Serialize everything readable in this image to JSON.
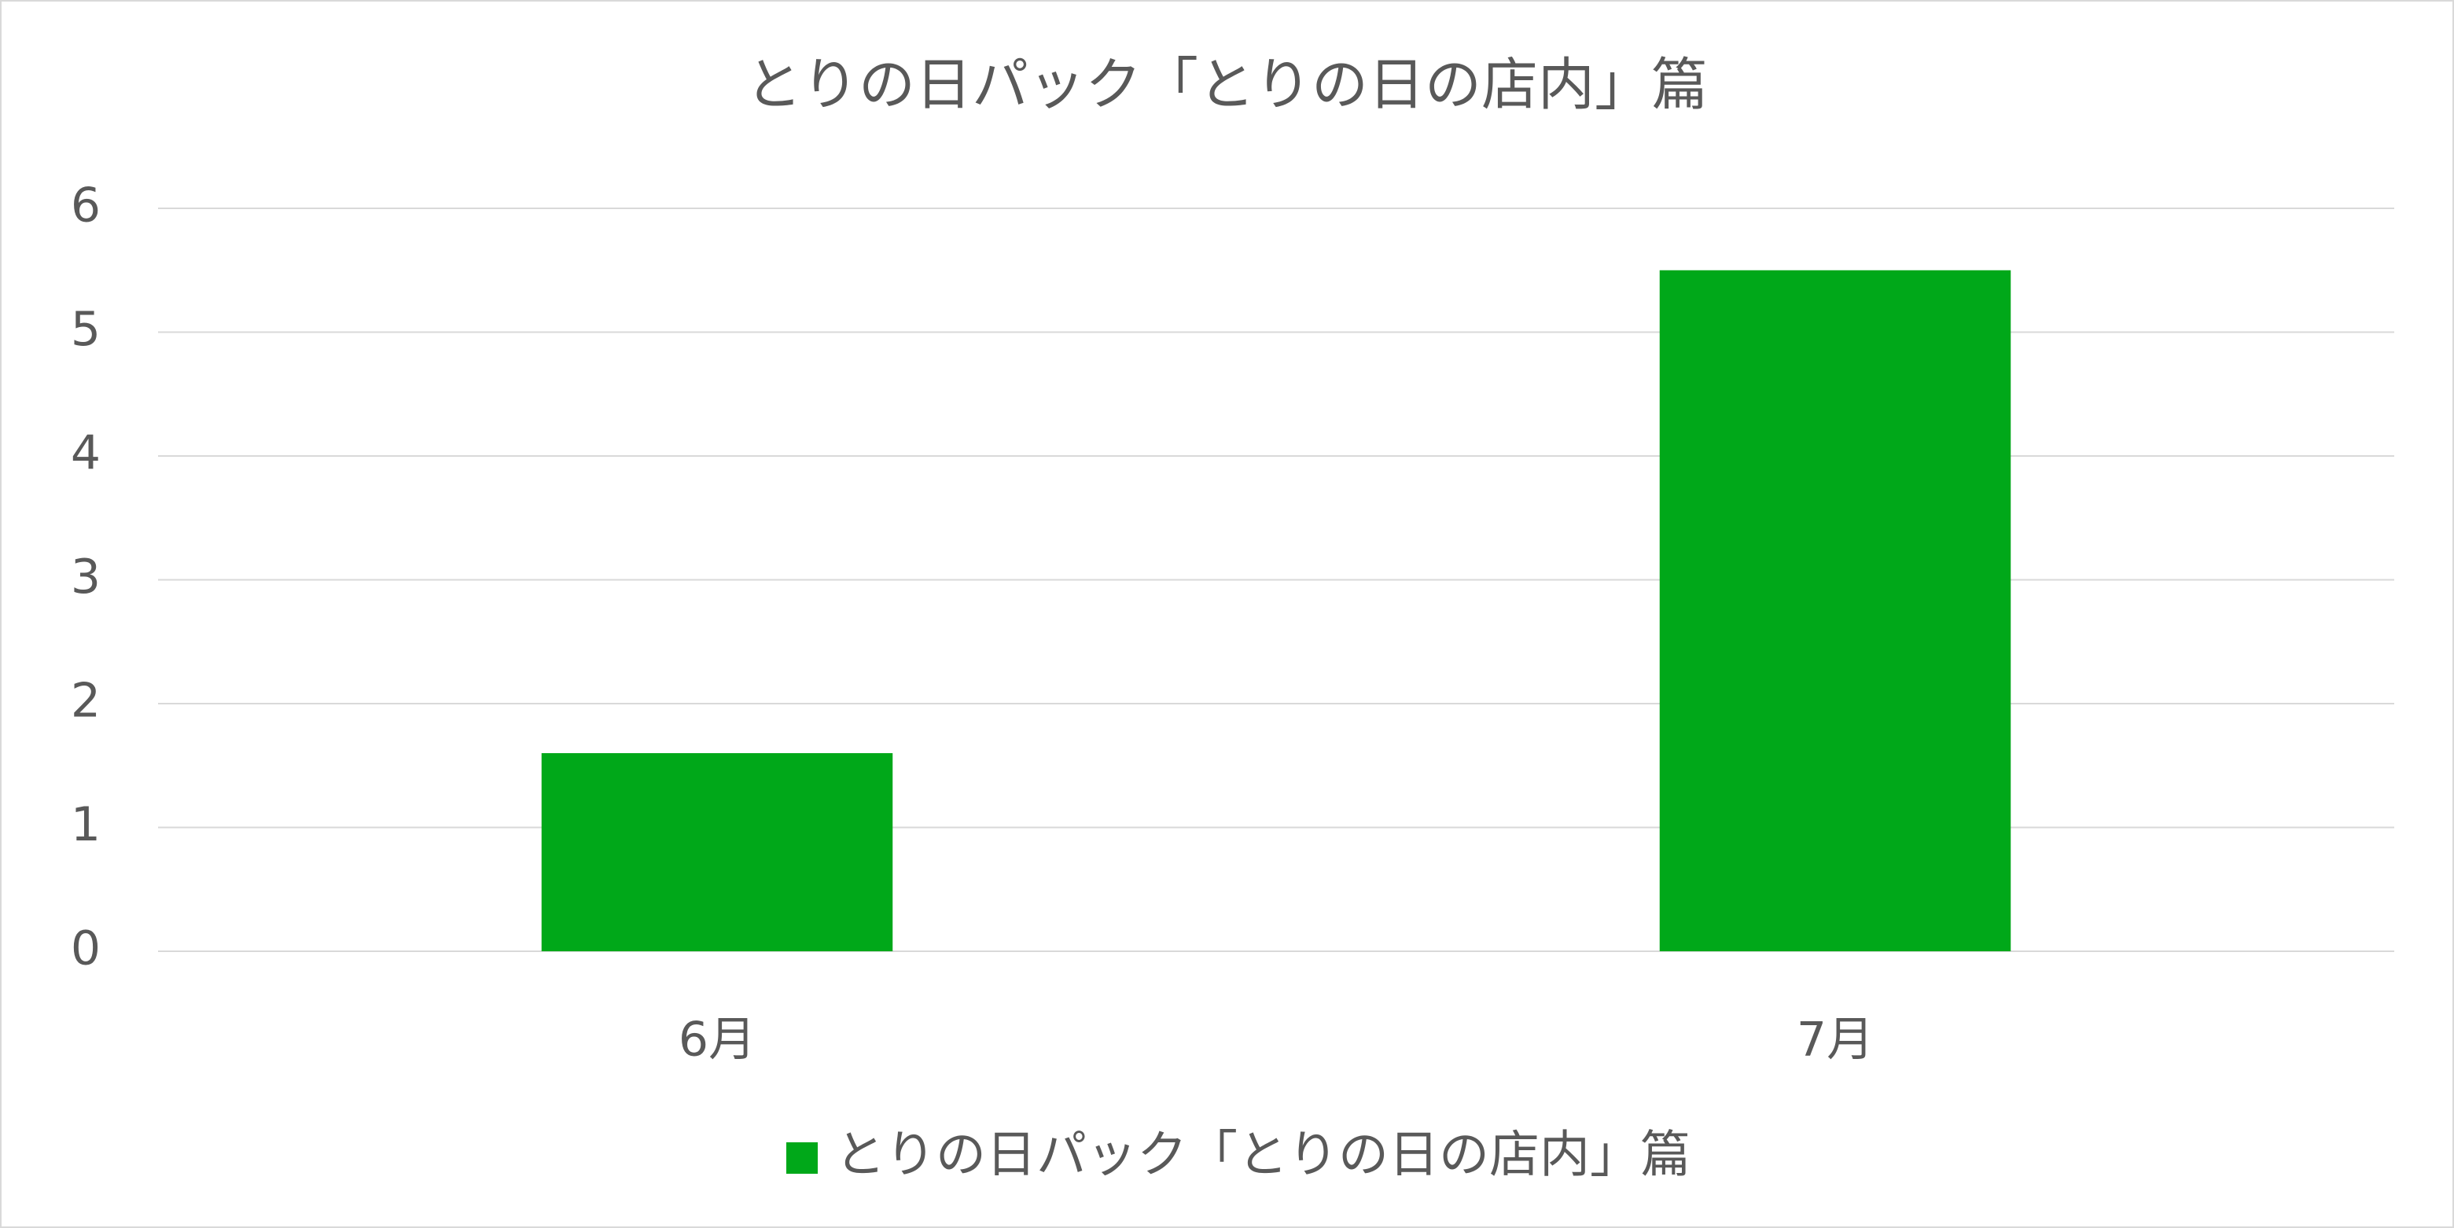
{
  "chart_data": {
    "type": "bar",
    "title": "とりの日パック「とりの日の店内」篇",
    "categories": [
      "6月",
      "7月"
    ],
    "series": [
      {
        "name": "とりの日パック「とりの日の店内」篇",
        "color": "#00a819",
        "values": [
          1.6,
          5.5
        ]
      }
    ],
    "ylim": [
      0,
      6
    ],
    "yticks": [
      0,
      1,
      2,
      3,
      4,
      5,
      6
    ],
    "grid": true,
    "legend": "bottom"
  }
}
